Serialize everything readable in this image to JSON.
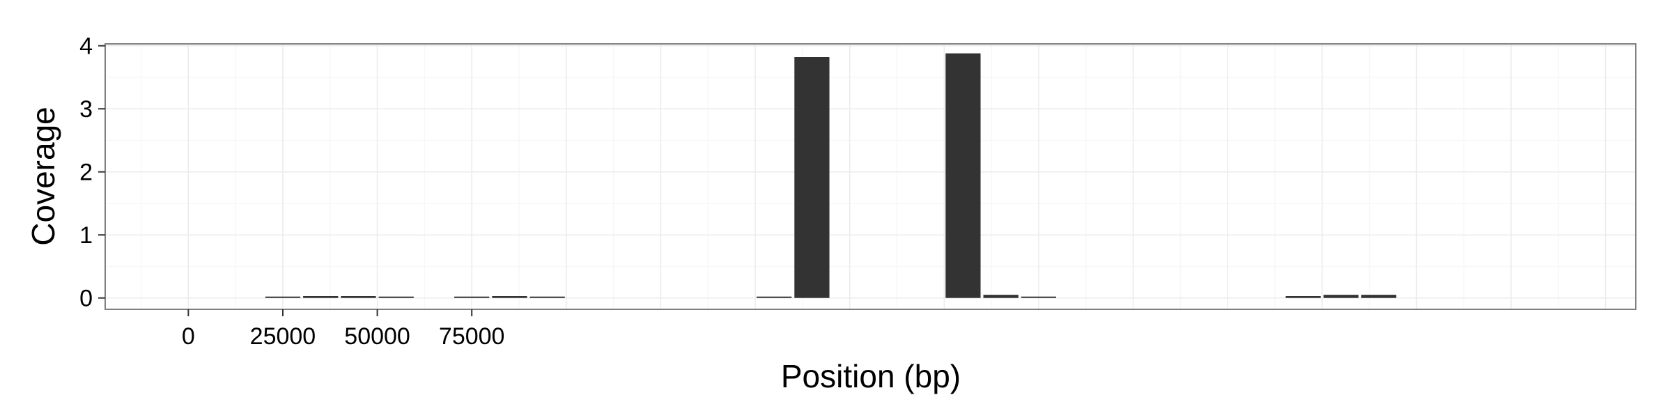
{
  "chart_data": {
    "type": "bar",
    "title": "",
    "xlabel": "Position (bp)",
    "ylabel": "Coverage",
    "xlim": [
      -22000,
      383000
    ],
    "ylim": [
      -0.18,
      4.03
    ],
    "x_ticks": [
      0,
      25000,
      50000,
      75000
    ],
    "x_tick_labels": [
      "0",
      "25000",
      "50000",
      "75000"
    ],
    "y_ticks": [
      0,
      1,
      2,
      3,
      4
    ],
    "y_tick_labels": [
      "0",
      "1",
      "2",
      "3",
      "4"
    ],
    "bin_width": 10000,
    "grid": true,
    "legend": "none",
    "bar_color": "#333333",
    "panel_background": "#ffffff",
    "panel_border_color": "#7f7f7f",
    "grid_color": "#ebebeb",
    "x": [
      25000,
      35000,
      45000,
      55000,
      75000,
      85000,
      95000,
      155000,
      165000,
      205000,
      215000,
      225000,
      295000,
      305000,
      315000,
      325000
    ],
    "values": [
      0.01,
      0.03,
      0.03,
      0.01,
      0.02,
      0.03,
      0.01,
      0.01,
      3.82,
      3.88,
      0.05,
      0.02,
      0.03,
      0.05,
      0.05,
      0.0
    ]
  }
}
